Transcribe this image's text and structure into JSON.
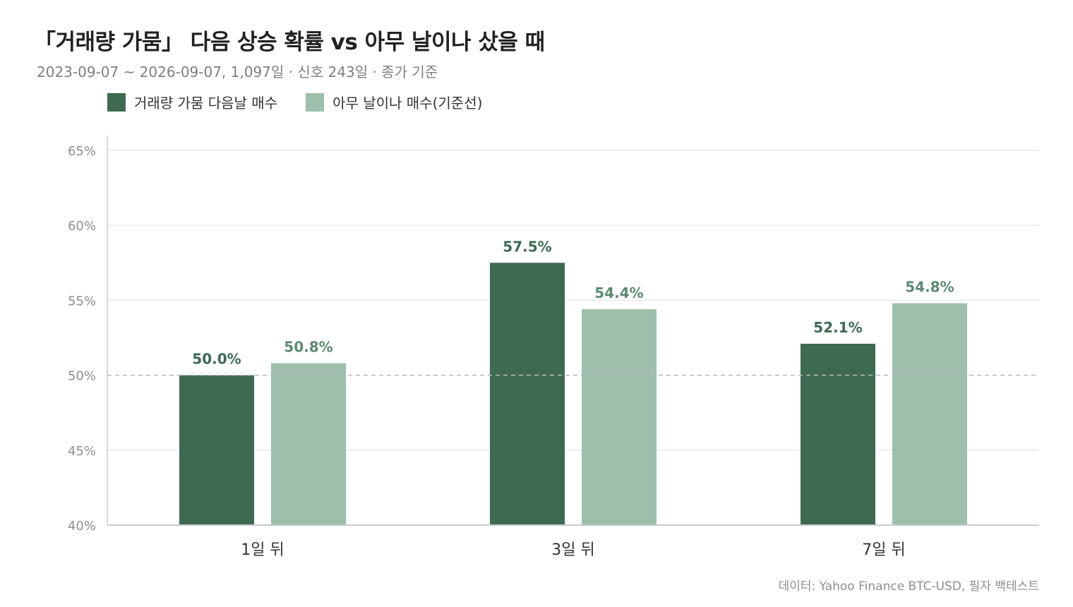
{
  "title": "「거래량 가뭄」 다음 상승 확률 vs 아무 날이나 샀을 때",
  "subtitle": "2023-09-07 ~ 2026-09-07, 1,097일 · 신호 243일 · 종가 기준",
  "source": "데이터: Yahoo Finance BTC-USD, 필자 백테스트",
  "colors": {
    "signal": "#3e6a52",
    "baseline": "#9dbfab",
    "grid": "#e6e8eb",
    "axis": "#c9ccd1",
    "reference": "#b5b9bf"
  },
  "chart_data": {
    "type": "bar",
    "categories": [
      "1일 뒤",
      "3일 뒤",
      "7일 뒤"
    ],
    "series": [
      {
        "name": "거래량 가뭄 다음날 매수",
        "values": [
          50.0,
          57.5,
          52.1
        ],
        "color": "#3e6a52",
        "labels": [
          "50.0%",
          "57.5%",
          "52.1%"
        ]
      },
      {
        "name": "아무 날이나 매수(기준선)",
        "values": [
          50.8,
          54.4,
          54.8
        ],
        "color": "#9dbfab",
        "labels": [
          "50.8%",
          "54.4%",
          "54.8%"
        ]
      }
    ],
    "ylim": [
      40,
      65
    ],
    "yticks": [
      40,
      45,
      50,
      55,
      60,
      65
    ],
    "ytick_labels": [
      "40%",
      "45%",
      "50%",
      "55%",
      "60%",
      "65%"
    ],
    "reference_line": 50,
    "grid": true,
    "legend_position": "top-left"
  }
}
